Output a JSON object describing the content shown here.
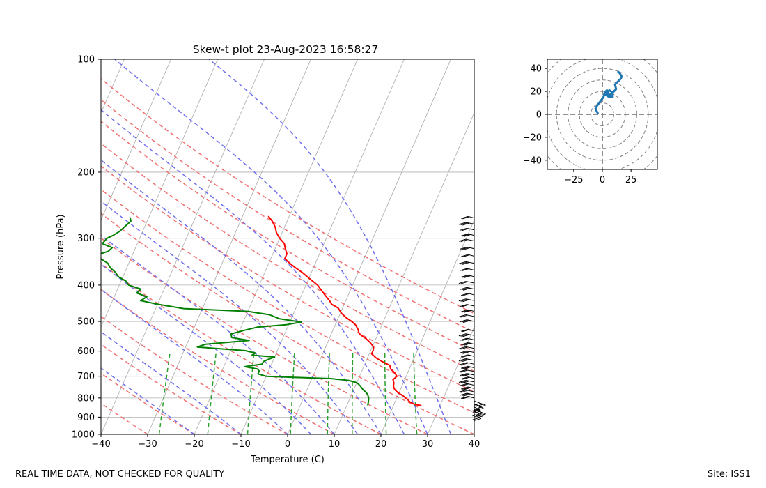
{
  "footer": {
    "disclaimer": "REAL TIME DATA, NOT CHECKED FOR QUALITY",
    "site": "Site: ISS1"
  },
  "chart_data": [
    {
      "type": "skew-t",
      "title": "Skew-t plot 23-Aug-2023 16:58:27",
      "xlabel": "Temperature (C)",
      "ylabel": "Pressure (hPa)",
      "xlim": [
        -40,
        40
      ],
      "ylim_hpa": [
        1000,
        100
      ],
      "skew_c_per_decade": 35,
      "x_ticks": [
        -40,
        -30,
        -20,
        -10,
        0,
        10,
        20,
        30,
        40
      ],
      "x_tick_labels": [
        "−40",
        "−30",
        "−20",
        "−10",
        "0",
        "10",
        "20",
        "30",
        "40"
      ],
      "y_ticks": [
        100,
        200,
        300,
        400,
        500,
        600,
        700,
        800,
        900,
        1000
      ],
      "y_tick_labels": [
        "100",
        "200",
        "300",
        "400",
        "500",
        "600",
        "700",
        "800",
        "900",
        "1000"
      ],
      "isotherms_c": [
        -100,
        -90,
        -80,
        -70,
        -60,
        -50,
        -40,
        -30,
        -20,
        -10,
        0,
        10,
        20,
        30,
        40
      ],
      "dry_adiabats_theta_c": [
        -30,
        -20,
        -10,
        0,
        10,
        20,
        30,
        40,
        50,
        60,
        70,
        80,
        90,
        100
      ],
      "moist_adiabats_start_c": [
        -20,
        -10,
        0,
        5,
        10,
        15,
        20,
        25,
        30,
        35
      ],
      "mixing_ratios_gkg": [
        0.4,
        1,
        2,
        4,
        7,
        10,
        16,
        24
      ],
      "colors": {
        "temperature": "#ff0000",
        "dewpoint": "#008000",
        "dry_adiabat": "#f07070",
        "moist_adiabat": "#6f6ff0",
        "mixing_ratio": "#2ca02c",
        "isotherm": "#a9a9a9",
        "hodograph": "#1f77b4",
        "hodo_ring": "#808080"
      },
      "series": [
        {
          "name": "Temperature",
          "points": [
            [
              838,
              26.0
            ],
            [
              833,
              24.5
            ],
            [
              820,
              23.2
            ],
            [
              808,
              22.5
            ],
            [
              790,
              21.2
            ],
            [
              775,
              19.8
            ],
            [
              760,
              18.8
            ],
            [
              745,
              18.2
            ],
            [
              730,
              18.0
            ],
            [
              715,
              17.5
            ],
            [
              700,
              18.0
            ],
            [
              685,
              17.2
            ],
            [
              670,
              16.0
            ],
            [
              655,
              15.5
            ],
            [
              640,
              13.5
            ],
            [
              625,
              11.8
            ],
            [
              610,
              10.5
            ],
            [
              597,
              10.5
            ],
            [
              585,
              10.3
            ],
            [
              570,
              9.2
            ],
            [
              555,
              7.8
            ],
            [
              540,
              6.0
            ],
            [
              525,
              5.3
            ],
            [
              510,
              4.3
            ],
            [
              500,
              3.2
            ],
            [
              488,
              1.6
            ],
            [
              475,
              0.2
            ],
            [
              460,
              -1.0
            ],
            [
              450,
              -2.7
            ],
            [
              440,
              -3.5
            ],
            [
              425,
              -5.0
            ],
            [
              410,
              -6.5
            ],
            [
              400,
              -7.5
            ],
            [
              390,
              -9.0
            ],
            [
              380,
              -10.5
            ],
            [
              370,
              -12.0
            ],
            [
              360,
              -13.8
            ],
            [
              350,
              -15.5
            ],
            [
              340,
              -17.0
            ],
            [
              330,
              -17.0
            ],
            [
              320,
              -17.8
            ],
            [
              310,
              -18.5
            ],
            [
              300,
              -20.0
            ],
            [
              290,
              -21.2
            ],
            [
              280,
              -22.0
            ],
            [
              270,
              -23.2
            ],
            [
              262,
              -24.5
            ]
          ]
        },
        {
          "name": "Dewpoint",
          "points": [
            [
              838,
              14.5
            ],
            [
              820,
              14.3
            ],
            [
              800,
              14.0
            ],
            [
              785,
              13.5
            ],
            [
              775,
              13.0
            ],
            [
              760,
              12.0
            ],
            [
              742,
              11.0
            ],
            [
              728,
              10.0
            ],
            [
              718,
              8.0
            ],
            [
              710,
              4.0
            ],
            [
              705,
              -4.0
            ],
            [
              700,
              -10.0
            ],
            [
              690,
              -12.0
            ],
            [
              678,
              -12.0
            ],
            [
              670,
              -12.5
            ],
            [
              660,
              -15.5
            ],
            [
              650,
              -12.0
            ],
            [
              640,
              -12.0
            ],
            [
              630,
              -11.0
            ],
            [
              622,
              -10.0
            ],
            [
              615,
              -15.0
            ],
            [
              607,
              -14.5
            ],
            [
              598,
              -17.0
            ],
            [
              592,
              -22.0
            ],
            [
              585,
              -27.5
            ],
            [
              575,
              -26.0
            ],
            [
              562,
              -17.0
            ],
            [
              552,
              -21.0
            ],
            [
              540,
              -21.5
            ],
            [
              528,
              -19.0
            ],
            [
              518,
              -16.5
            ],
            [
              510,
              -10.5
            ],
            [
              502,
              -7.5
            ],
            [
              492,
              -12.5
            ],
            [
              480,
              -15.0
            ],
            [
              470,
              -20.0
            ],
            [
              462,
              -34.0
            ],
            [
              456,
              -37.0
            ],
            [
              450,
              -40.0
            ],
            [
              440,
              -44.0
            ],
            [
              430,
              -43.0
            ],
            [
              420,
              -45.5
            ],
            [
              410,
              -45.0
            ],
            [
              400,
              -48.0
            ],
            [
              390,
              -49.0
            ],
            [
              380,
              -51.0
            ],
            [
              370,
              -52.0
            ],
            [
              360,
              -53.5
            ],
            [
              350,
              -54.5
            ],
            [
              340,
              -56.5
            ],
            [
              332,
              -57.5
            ],
            [
              325,
              -55.5
            ],
            [
              318,
              -55.0
            ],
            [
              310,
              -57.5
            ],
            [
              300,
              -57.0
            ],
            [
              295,
              -56.0
            ],
            [
              288,
              -55.0
            ],
            [
              282,
              -54.5
            ],
            [
              276,
              -54.0
            ],
            [
              270,
              -53.5
            ],
            [
              264,
              -54.0
            ]
          ]
        }
      ],
      "wind_barbs": {
        "pressures_hpa": [
          885,
          870,
          860,
          845,
          830,
          815,
          800,
          785,
          770,
          755,
          740,
          725,
          710,
          695,
          680,
          665,
          650,
          635,
          620,
          605,
          590,
          575,
          560,
          545,
          530,
          500,
          485,
          470,
          455,
          440,
          425,
          410,
          395,
          380,
          365,
          350,
          335,
          320,
          305,
          295,
          285,
          275,
          265
        ]
      }
    },
    {
      "type": "hodograph",
      "xlim": [
        -48,
        48
      ],
      "ylim": [
        -48,
        48
      ],
      "x_ticks": [
        -25,
        0,
        25
      ],
      "x_tick_labels": [
        "−25",
        "0",
        "25"
      ],
      "y_ticks": [
        40,
        20,
        0,
        -20,
        -40
      ],
      "y_tick_labels": [
        "40",
        "20",
        "0",
        "−20",
        "−40"
      ],
      "rings": [
        10,
        20,
        30,
        40,
        50,
        60
      ],
      "points": [
        [
          -4,
          1
        ],
        [
          -6,
          5
        ],
        [
          -5,
          7
        ],
        [
          -2,
          11
        ],
        [
          1,
          15
        ],
        [
          2,
          19
        ],
        [
          4,
          21
        ],
        [
          3,
          17
        ],
        [
          6,
          15
        ],
        [
          9,
          15
        ],
        [
          9,
          19
        ],
        [
          6,
          21
        ],
        [
          4,
          18
        ],
        [
          7,
          17
        ],
        [
          10,
          20
        ],
        [
          12,
          22
        ],
        [
          11,
          26
        ],
        [
          13,
          28
        ],
        [
          16,
          31
        ],
        [
          17,
          33
        ],
        [
          15,
          36
        ],
        [
          14,
          37
        ]
      ]
    }
  ]
}
